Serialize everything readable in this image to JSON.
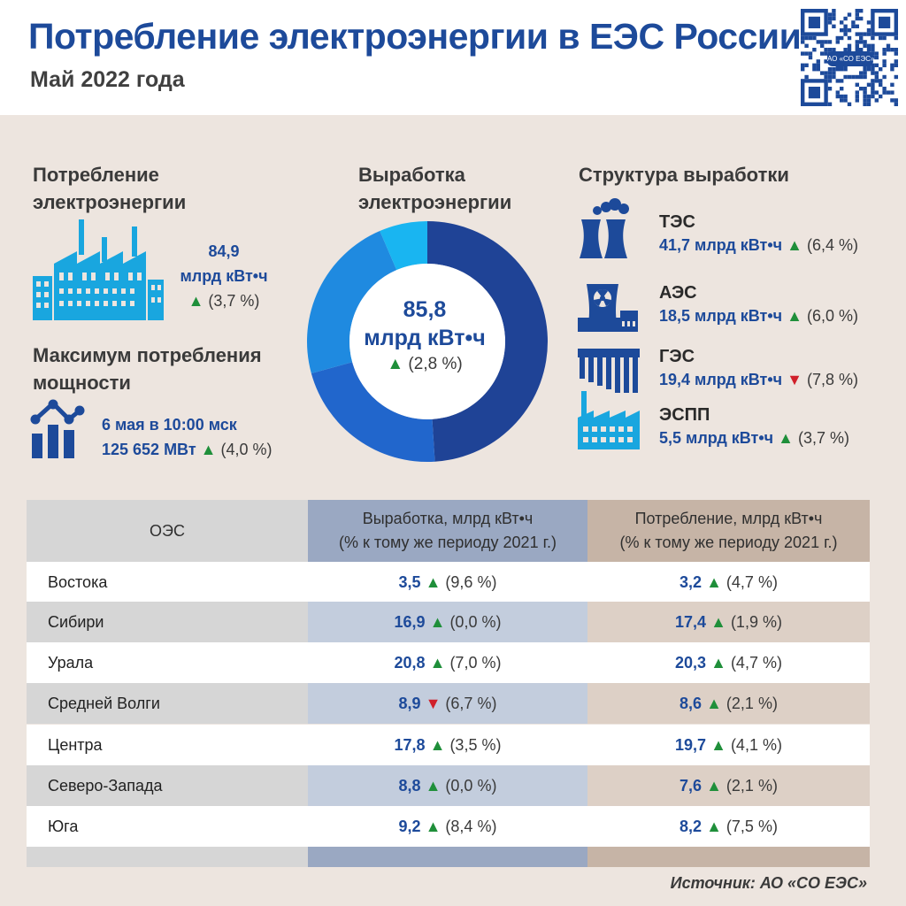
{
  "header": {
    "title": "Потребление электроэнергии в ЕЭС России",
    "subtitle": "Май 2022 года",
    "qr_label": "АО «СО ЕЭС»"
  },
  "consumption": {
    "heading_line1": "Потребление",
    "heading_line2": "электроэнергии",
    "value": "84,9",
    "unit": "млрд кВт•ч",
    "arrow": "▲",
    "change": "(3,7 %)"
  },
  "peak": {
    "heading_line1": "Максимум потребления",
    "heading_line2": "мощности",
    "datetime": "6 мая в 10:00 мск",
    "value": "125 652 МВт",
    "arrow": "▲",
    "change": "(4,0 %)"
  },
  "generation": {
    "heading_line1": "Выработка",
    "heading_line2": "электроэнергии",
    "value": "85,8",
    "unit": "млрд кВт•ч",
    "arrow": "▲",
    "change": "(2,8 %)"
  },
  "structure": {
    "heading": "Структура выработки",
    "items": [
      {
        "name": "ТЭС",
        "value": "41,7 млрд кВт•ч",
        "arrow": "▲",
        "dir": "up",
        "change": "(6,4 %)",
        "icon": "thermal-plant-icon"
      },
      {
        "name": "АЭС",
        "value": "18,5 млрд кВт•ч",
        "arrow": "▲",
        "dir": "up",
        "change": "(6,0 %)",
        "icon": "nuclear-plant-icon"
      },
      {
        "name": "ГЭС",
        "value": "19,4 млрд кВт•ч",
        "arrow": "▼",
        "dir": "down",
        "change": "(7,8 %)",
        "icon": "hydro-plant-icon"
      },
      {
        "name": "ЭСПП",
        "value": "5,5 млрд кВт•ч",
        "arrow": "▲",
        "dir": "up",
        "change": "(3,7 %)",
        "icon": "industrial-plant-icon"
      }
    ]
  },
  "chart_data": {
    "type": "pie",
    "categories": [
      "ТЭС",
      "АЭС",
      "ГЭС",
      "ЭСПП"
    ],
    "values": [
      41.7,
      18.5,
      19.4,
      5.5
    ],
    "colors": [
      "#1f4396",
      "#2166cc",
      "#1f8ae0",
      "#19b5f1"
    ],
    "donut": true,
    "center_value": "85,8"
  },
  "table": {
    "headers": [
      {
        "line1": "ОЭС",
        "line2": ""
      },
      {
        "line1": "Выработка, млрд кВт•ч",
        "line2": "(% к тому же периоду 2021 г.)"
      },
      {
        "line1": "Потребление, млрд кВт•ч",
        "line2": "(% к тому же периоду 2021 г.)"
      }
    ],
    "rows": [
      {
        "name": "Востока",
        "gen": "3,5",
        "gen_arrow": "▲",
        "gen_dir": "up",
        "gen_change": "(9,6 %)",
        "con": "3,2",
        "con_arrow": "▲",
        "con_dir": "up",
        "con_change": "(4,7 %)"
      },
      {
        "name": "Сибири",
        "gen": "16,9",
        "gen_arrow": "▲",
        "gen_dir": "up",
        "gen_change": "(0,0 %)",
        "con": "17,4",
        "con_arrow": "▲",
        "con_dir": "up",
        "con_change": "(1,9 %)"
      },
      {
        "name": "Урала",
        "gen": "20,8",
        "gen_arrow": "▲",
        "gen_dir": "up",
        "gen_change": "(7,0 %)",
        "con": "20,3",
        "con_arrow": "▲",
        "con_dir": "up",
        "con_change": "(4,7 %)"
      },
      {
        "name": "Средней Волги",
        "gen": "8,9",
        "gen_arrow": "▼",
        "gen_dir": "down",
        "gen_change": "(6,7 %)",
        "con": "8,6",
        "con_arrow": "▲",
        "con_dir": "up",
        "con_change": "(2,1 %)"
      },
      {
        "name": "Центра",
        "gen": "17,8",
        "gen_arrow": "▲",
        "gen_dir": "up",
        "gen_change": "(3,5 %)",
        "con": "19,7",
        "con_arrow": "▲",
        "con_dir": "up",
        "con_change": "(4,1 %)"
      },
      {
        "name": "Северо-Запада",
        "gen": "8,8",
        "gen_arrow": "▲",
        "gen_dir": "up",
        "gen_change": "(0,0 %)",
        "con": "7,6",
        "con_arrow": "▲",
        "con_dir": "up",
        "con_change": "(2,1 %)"
      },
      {
        "name": "Юга",
        "gen": "9,2",
        "gen_arrow": "▲",
        "gen_dir": "up",
        "gen_change": "(8,4 %)",
        "con": "8,2",
        "con_arrow": "▲",
        "con_dir": "up",
        "con_change": "(7,5 %)"
      }
    ]
  },
  "colors": {
    "brand_blue": "#1d4a9a",
    "up_green": "#1f8f3a",
    "down_red": "#d0202a",
    "icon_cyan": "#19a6df"
  },
  "footer": {
    "source": "Источник: АО «СО ЕЭС»"
  }
}
